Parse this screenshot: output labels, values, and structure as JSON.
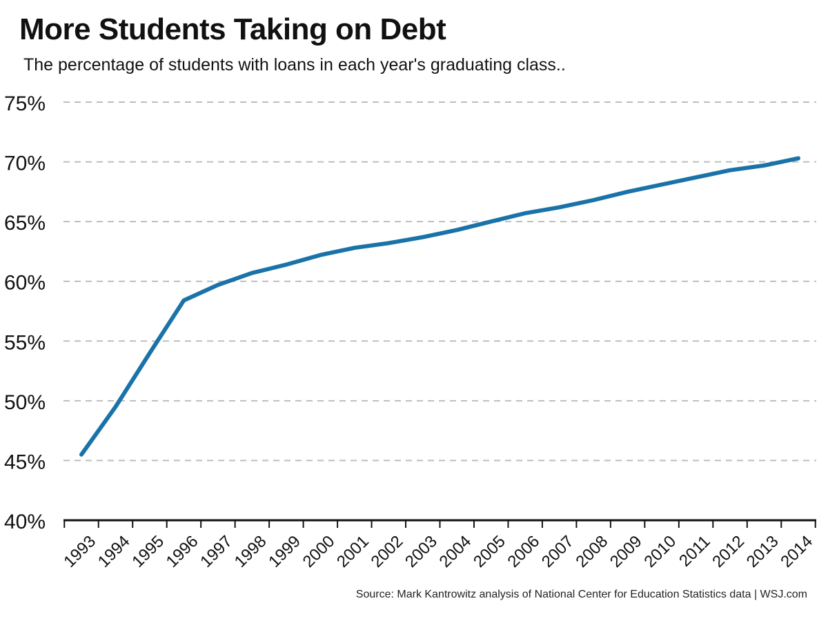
{
  "chart_data": {
    "type": "line",
    "title": "More Students Taking on Debt",
    "subtitle": "The percentage of students with loans in each year's graduating class..",
    "x": [
      "1993",
      "1994",
      "1995",
      "1996",
      "1997",
      "1998",
      "1999",
      "2000",
      "2001",
      "2002",
      "2003",
      "2004",
      "2005",
      "2006",
      "2007",
      "2008",
      "2009",
      "2010",
      "2011",
      "2012",
      "2013",
      "2014"
    ],
    "series": [
      {
        "values": [
          45.5,
          49.5,
          54.0,
          58.4,
          59.7,
          60.7,
          61.4,
          62.2,
          62.8,
          63.2,
          63.7,
          64.3,
          65.0,
          65.7,
          66.2,
          66.8,
          67.5,
          68.1,
          68.7,
          69.3,
          69.7,
          70.3
        ],
        "color": "#1a73a8"
      }
    ],
    "yticks": [
      "40%",
      "45%",
      "50%",
      "55%",
      "60%",
      "65%",
      "70%",
      "75%"
    ],
    "ylim": [
      40,
      75
    ],
    "grid": true,
    "source": "Source: Mark Kantrowitz analysis of National Center for Education Statistics data  |  WSJ.com"
  }
}
